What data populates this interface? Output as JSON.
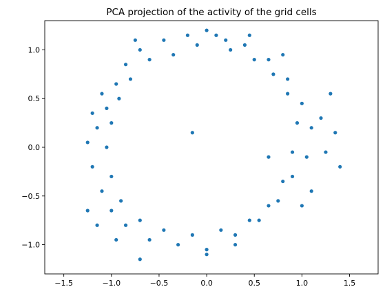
{
  "chart_data": {
    "type": "scatter",
    "title": "PCA projection of the activity of the grid cells",
    "xlabel": "",
    "ylabel": "",
    "xlim": [
      -1.7,
      1.8
    ],
    "ylim": [
      -1.3,
      1.3
    ],
    "xticks": [
      -1.5,
      -1.0,
      -0.5,
      0.0,
      0.5,
      1.0,
      1.5
    ],
    "xtick_labels": [
      "−1.5",
      "−1.0",
      "−0.5",
      "0.0",
      "0.5",
      "1.0",
      "1.5"
    ],
    "yticks": [
      -1.0,
      -0.5,
      0.0,
      0.5,
      1.0
    ],
    "ytick_labels": [
      "−1.0",
      "−0.5",
      "0.0",
      "0.5",
      "1.0"
    ],
    "grid": false,
    "legend": "none",
    "marker_color": "#1f77b4",
    "series": [
      {
        "points": [
          [
            0.0,
            1.2
          ],
          [
            0.2,
            1.1
          ],
          [
            -0.2,
            1.15
          ],
          [
            -0.45,
            1.1
          ],
          [
            -0.7,
            1.0
          ],
          [
            -0.85,
            0.85
          ],
          [
            -0.95,
            0.65
          ],
          [
            -1.05,
            0.4
          ],
          [
            -1.15,
            0.2
          ],
          [
            -1.25,
            0.05
          ],
          [
            -1.2,
            -0.2
          ],
          [
            -1.1,
            -0.45
          ],
          [
            -1.0,
            -0.65
          ],
          [
            -0.85,
            -0.8
          ],
          [
            -0.6,
            -0.95
          ],
          [
            -0.3,
            -1.0
          ],
          [
            0.0,
            -1.1
          ],
          [
            0.3,
            -0.9
          ],
          [
            0.55,
            -0.75
          ],
          [
            0.75,
            -0.55
          ],
          [
            0.9,
            -0.3
          ],
          [
            1.05,
            -0.1
          ],
          [
            1.1,
            0.2
          ],
          [
            1.0,
            0.45
          ],
          [
            0.85,
            0.7
          ],
          [
            0.65,
            0.9
          ],
          [
            0.4,
            1.05
          ],
          [
            0.1,
            1.15
          ],
          [
            -0.1,
            1.05
          ],
          [
            -0.35,
            0.95
          ],
          [
            -0.6,
            0.9
          ],
          [
            -0.8,
            0.7
          ],
          [
            -0.92,
            0.5
          ],
          [
            -1.0,
            0.25
          ],
          [
            -1.05,
            0.0
          ],
          [
            -1.0,
            -0.3
          ],
          [
            -0.9,
            -0.55
          ],
          [
            -0.7,
            -0.75
          ],
          [
            -0.45,
            -0.85
          ],
          [
            -0.15,
            -0.9
          ],
          [
            0.15,
            -0.85
          ],
          [
            0.45,
            -0.75
          ],
          [
            0.65,
            -0.6
          ],
          [
            0.8,
            -0.35
          ],
          [
            0.9,
            -0.05
          ],
          [
            0.95,
            0.25
          ],
          [
            0.85,
            0.55
          ],
          [
            0.7,
            0.75
          ],
          [
            0.5,
            0.9
          ],
          [
            0.25,
            1.0
          ],
          [
            1.3,
            0.55
          ],
          [
            1.35,
            0.15
          ],
          [
            1.4,
            -0.2
          ],
          [
            -1.25,
            -0.65
          ],
          [
            -1.15,
            -0.8
          ],
          [
            -0.7,
            -1.15
          ],
          [
            -0.95,
            -0.95
          ],
          [
            0.0,
            -1.05
          ],
          [
            -0.15,
            0.15
          ],
          [
            0.65,
            -0.1
          ],
          [
            1.2,
            0.3
          ],
          [
            1.25,
            -0.05
          ],
          [
            -0.75,
            1.1
          ],
          [
            0.45,
            1.15
          ],
          [
            0.8,
            0.95
          ],
          [
            -1.1,
            0.55
          ],
          [
            -1.2,
            0.35
          ],
          [
            1.1,
            -0.45
          ],
          [
            1.0,
            -0.6
          ],
          [
            0.3,
            -1.0
          ]
        ]
      }
    ]
  }
}
